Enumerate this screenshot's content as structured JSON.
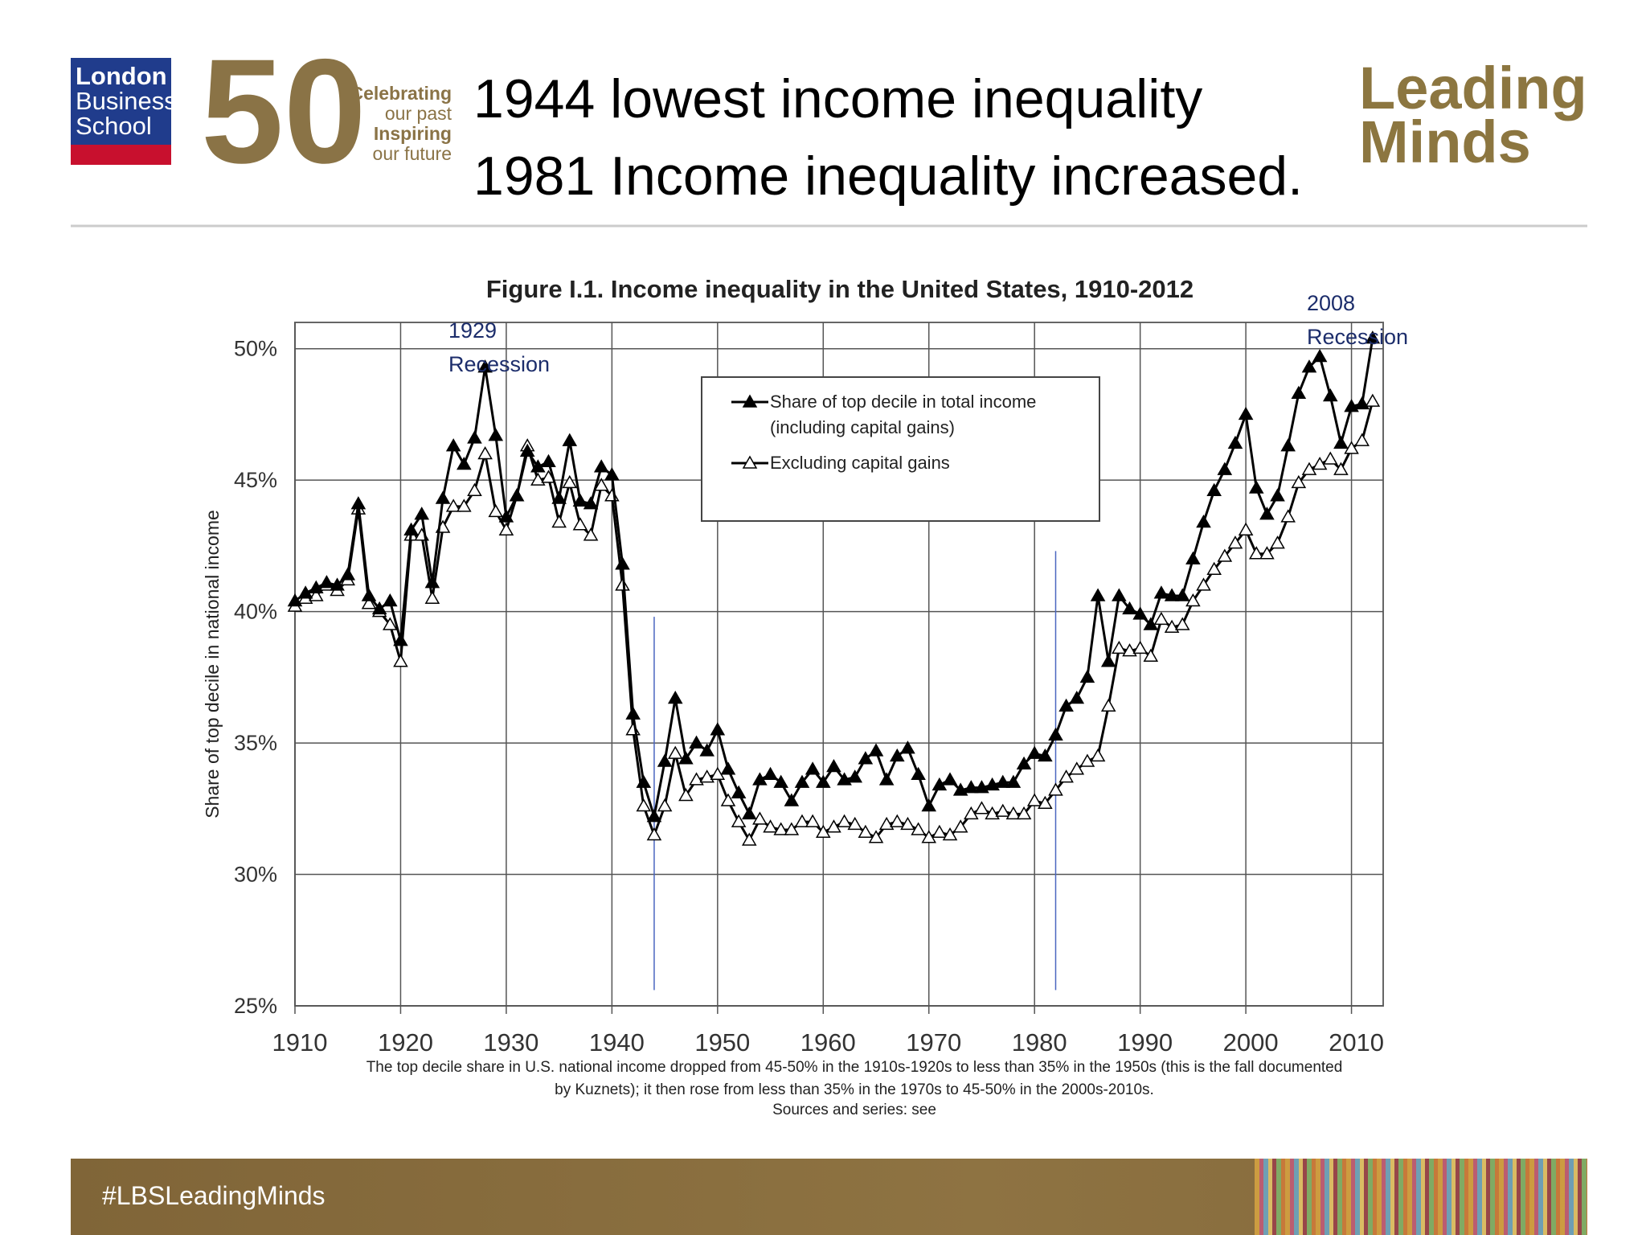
{
  "header": {
    "logo_lines": [
      "London",
      "Business",
      "School"
    ],
    "anniversary": "50",
    "tagline": [
      "Celebrating",
      "our past",
      "Inspiring",
      "our future"
    ],
    "title_lines": [
      "1944 lowest income inequality",
      "1981 Income inequality increased."
    ],
    "brand": [
      "Leading",
      "Minds"
    ]
  },
  "chart_data": {
    "type": "line",
    "title": "Figure I.1. Income inequality in the United States, 1910-2012",
    "y_label": "Share of top decile in national income",
    "x": [
      1910,
      1911,
      1912,
      1913,
      1914,
      1915,
      1916,
      1917,
      1918,
      1919,
      1920,
      1921,
      1922,
      1923,
      1924,
      1925,
      1926,
      1927,
      1928,
      1929,
      1930,
      1931,
      1932,
      1933,
      1934,
      1935,
      1936,
      1937,
      1938,
      1939,
      1940,
      1941,
      1942,
      1943,
      1944,
      1945,
      1946,
      1947,
      1948,
      1949,
      1950,
      1951,
      1952,
      1953,
      1954,
      1955,
      1956,
      1957,
      1958,
      1959,
      1960,
      1961,
      1962,
      1963,
      1964,
      1965,
      1966,
      1967,
      1968,
      1969,
      1970,
      1971,
      1972,
      1973,
      1974,
      1975,
      1976,
      1977,
      1978,
      1979,
      1980,
      1981,
      1982,
      1983,
      1984,
      1985,
      1986,
      1987,
      1988,
      1989,
      1990,
      1991,
      1992,
      1993,
      1994,
      1995,
      1996,
      1997,
      1998,
      1999,
      2000,
      2001,
      2002,
      2003,
      2004,
      2005,
      2006,
      2007,
      2008,
      2009,
      2010,
      2011,
      2012
    ],
    "series": [
      {
        "name": "Share of top decile in total income (including capital gains)",
        "color": "#000000",
        "marker_fill": "#000000",
        "values": [
          40.4,
          40.7,
          40.9,
          41.1,
          41.0,
          41.4,
          44.1,
          40.6,
          40.1,
          40.4,
          38.9,
          43.1,
          43.7,
          41.1,
          44.3,
          46.3,
          45.6,
          46.6,
          49.3,
          46.7,
          43.6,
          44.4,
          46.1,
          45.5,
          45.7,
          44.3,
          46.5,
          44.2,
          44.1,
          45.5,
          45.2,
          41.8,
          36.1,
          33.5,
          32.2,
          34.3,
          36.7,
          34.4,
          35.0,
          34.7,
          35.5,
          34.0,
          33.1,
          32.3,
          33.6,
          33.8,
          33.5,
          32.8,
          33.5,
          34.0,
          33.5,
          34.1,
          33.6,
          33.7,
          34.4,
          34.7,
          33.6,
          34.5,
          34.8,
          33.8,
          32.6,
          33.4,
          33.6,
          33.2,
          33.3,
          33.3,
          33.4,
          33.5,
          33.5,
          34.2,
          34.6,
          34.5,
          35.3,
          36.4,
          36.7,
          37.5,
          40.6,
          38.1,
          40.6,
          40.1,
          39.9,
          39.5,
          40.7,
          40.6,
          40.6,
          42.0,
          43.4,
          44.6,
          45.4,
          46.4,
          47.5,
          44.7,
          43.7,
          44.4,
          46.3,
          48.3,
          49.3,
          49.7,
          48.2,
          46.4,
          47.8,
          47.9,
          50.4
        ]
      },
      {
        "name": "Excluding capital gains",
        "color": "#000000",
        "marker_fill": "#ffffff",
        "values": [
          40.2,
          40.5,
          40.6,
          41.0,
          40.8,
          41.2,
          43.9,
          40.3,
          40.0,
          39.5,
          38.1,
          42.9,
          42.9,
          40.5,
          43.2,
          44.0,
          44.0,
          44.6,
          46.0,
          43.8,
          43.1,
          44.4,
          46.3,
          45.0,
          45.1,
          43.4,
          44.9,
          43.3,
          42.9,
          44.8,
          44.4,
          41.0,
          35.5,
          32.6,
          31.5,
          32.6,
          34.6,
          33.0,
          33.6,
          33.7,
          33.8,
          32.8,
          32.0,
          31.3,
          32.1,
          31.8,
          31.7,
          31.7,
          32.0,
          32.0,
          31.6,
          31.8,
          32.0,
          31.9,
          31.6,
          31.4,
          31.9,
          32.0,
          31.9,
          31.7,
          31.4,
          31.6,
          31.5,
          31.8,
          32.3,
          32.5,
          32.3,
          32.4,
          32.3,
          32.3,
          32.8,
          32.7,
          33.2,
          33.7,
          34.0,
          34.3,
          34.5,
          36.4,
          38.6,
          38.5,
          38.6,
          38.3,
          39.7,
          39.4,
          39.5,
          40.4,
          41.0,
          41.6,
          42.1,
          42.6,
          43.1,
          42.2,
          42.2,
          42.6,
          43.6,
          44.9,
          45.4,
          45.6,
          45.8,
          45.4,
          46.2,
          46.5,
          48.0
        ]
      }
    ],
    "xlim": [
      1910,
      2013
    ],
    "xticks": [
      1910,
      1920,
      1930,
      1940,
      1950,
      1960,
      1970,
      1980,
      1990,
      2000,
      2010
    ],
    "ylim": [
      25,
      51
    ],
    "yticks": [
      {
        "value": 25,
        "label": "25%"
      },
      {
        "value": 30,
        "label": "30%"
      },
      {
        "value": 35,
        "label": "35%"
      },
      {
        "value": 40,
        "label": "40%"
      },
      {
        "value": 45,
        "label": "45%"
      },
      {
        "value": 50,
        "label": "50%"
      }
    ],
    "grid": true,
    "legend": "top",
    "annotations": [
      "1929 Recession",
      "2008 Recession"
    ],
    "reference_lines": [
      {
        "x": 1944,
        "y": [
          25.6,
          39.8
        ],
        "color": "#4a66c0"
      },
      {
        "x": 1982,
        "y": [
          25.6,
          42.3
        ],
        "color": "#4a66c0"
      }
    ],
    "caption": "The top decile share in U.S. national income dropped from 45-50% in the 1910s-1920s to less than 35% in the 1950s (this is the fall documented by Kuznets); it then rose from less than 35% in the 1970s to 45-50% in the 2000s-2010s.",
    "source": "Sources and series: see"
  },
  "footer": {
    "hashtag": "#LBSLeadingMinds"
  }
}
